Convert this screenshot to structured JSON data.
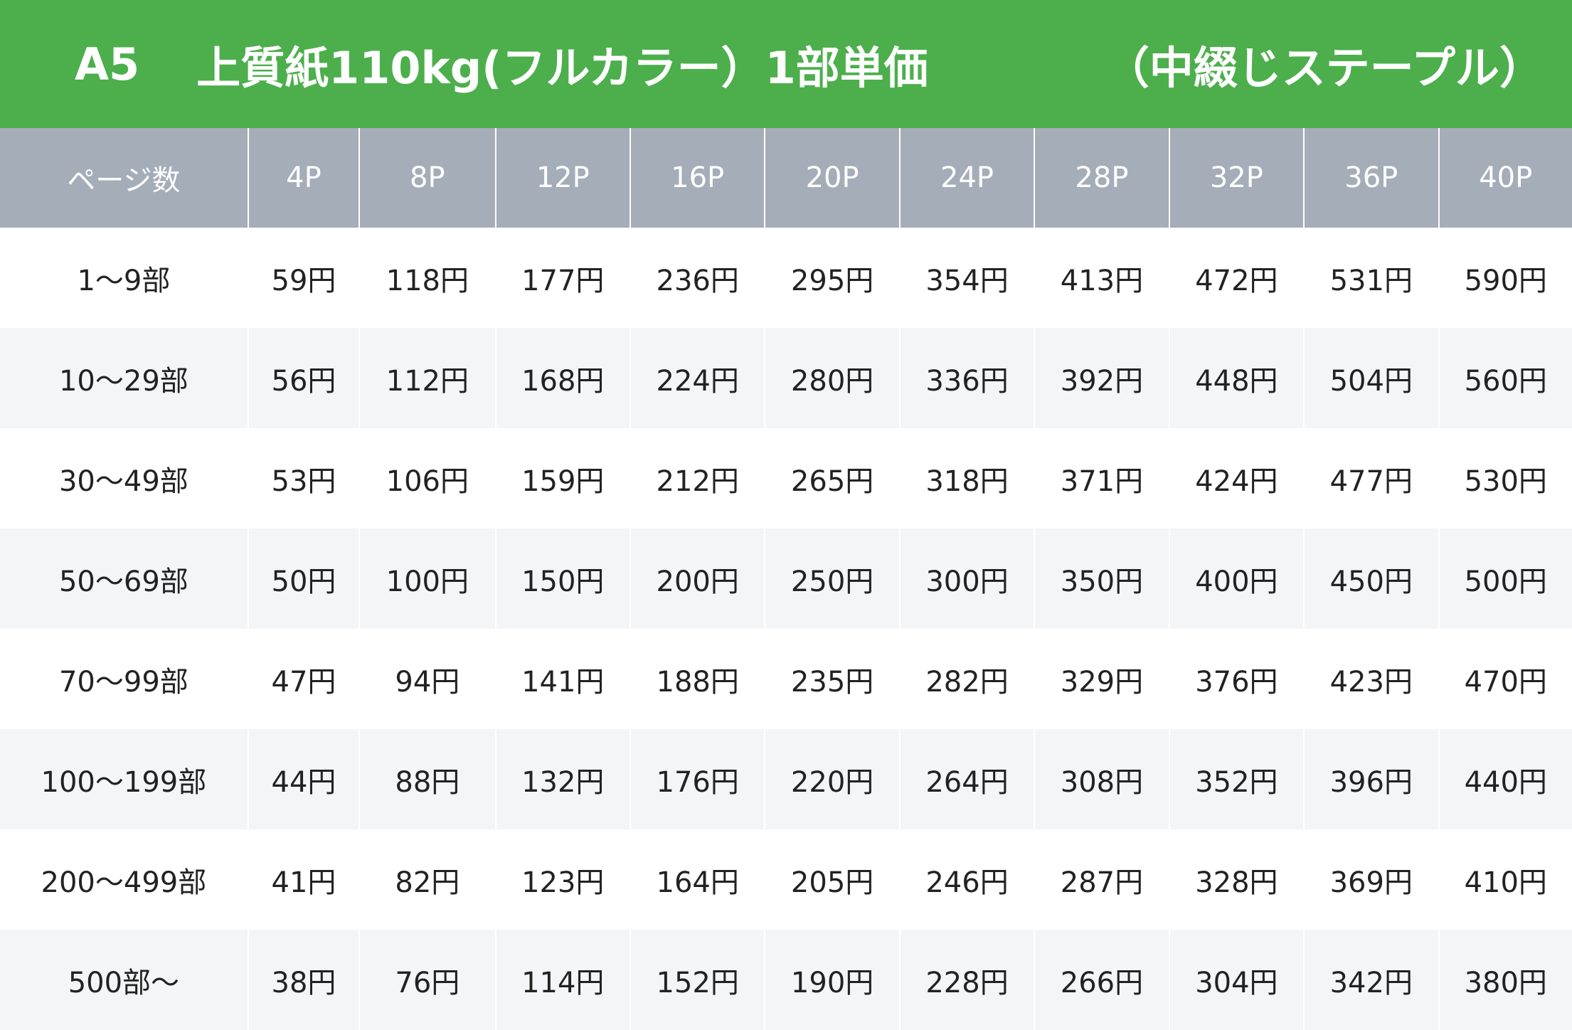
{
  "title": {
    "size": "A5",
    "description": "上質紙110kg(フルカラー）1部単価",
    "binding": "（中綴じステープル）"
  },
  "colors": {
    "title_bar": "#4caf4c",
    "header_bg": "#a4adb8",
    "stripe_bg": "#f4f5f7"
  },
  "table": {
    "corner_label": "ページ数",
    "columns": [
      "4P",
      "8P",
      "12P",
      "16P",
      "20P",
      "24P",
      "28P",
      "32P",
      "36P",
      "40P"
    ],
    "rows": [
      {
        "label": "1〜9部",
        "prices": [
          "59円",
          "118円",
          "177円",
          "236円",
          "295円",
          "354円",
          "413円",
          "472円",
          "531円",
          "590円"
        ]
      },
      {
        "label": "10〜29部",
        "prices": [
          "56円",
          "112円",
          "168円",
          "224円",
          "280円",
          "336円",
          "392円",
          "448円",
          "504円",
          "560円"
        ]
      },
      {
        "label": "30〜49部",
        "prices": [
          "53円",
          "106円",
          "159円",
          "212円",
          "265円",
          "318円",
          "371円",
          "424円",
          "477円",
          "530円"
        ]
      },
      {
        "label": "50〜69部",
        "prices": [
          "50円",
          "100円",
          "150円",
          "200円",
          "250円",
          "300円",
          "350円",
          "400円",
          "450円",
          "500円"
        ]
      },
      {
        "label": "70〜99部",
        "prices": [
          "47円",
          "94円",
          "141円",
          "188円",
          "235円",
          "282円",
          "329円",
          "376円",
          "423円",
          "470円"
        ]
      },
      {
        "label": "100〜199部",
        "prices": [
          "44円",
          "88円",
          "132円",
          "176円",
          "220円",
          "264円",
          "308円",
          "352円",
          "396円",
          "440円"
        ]
      },
      {
        "label": "200〜499部",
        "prices": [
          "41円",
          "82円",
          "123円",
          "164円",
          "205円",
          "246円",
          "287円",
          "328円",
          "369円",
          "410円"
        ]
      },
      {
        "label": "500部〜",
        "prices": [
          "38円",
          "76円",
          "114円",
          "152円",
          "190円",
          "228円",
          "266円",
          "304円",
          "342円",
          "380円"
        ]
      }
    ]
  }
}
